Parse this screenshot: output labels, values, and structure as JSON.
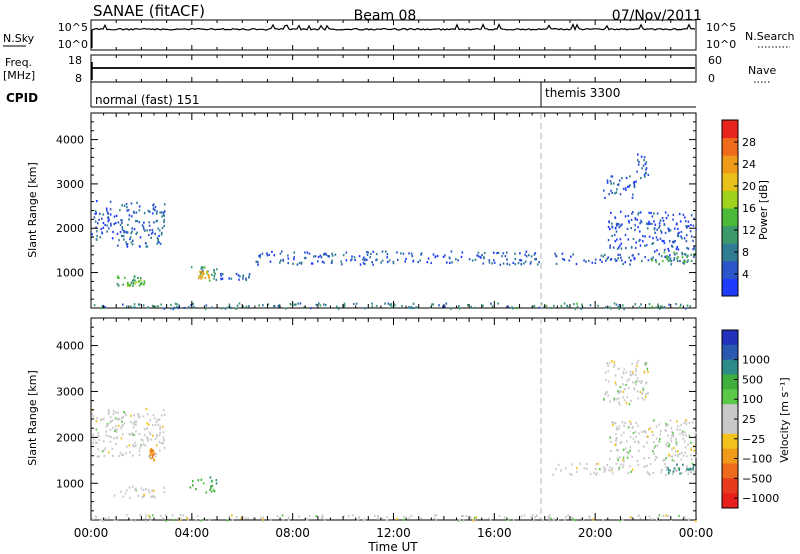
{
  "header": {
    "station": "SANAE (fitACF)",
    "beam": "Beam 08",
    "date": "07/Nov/2011"
  },
  "strips": {
    "nsky_label": "N.Sky",
    "nsky_ticks": [
      "10^5",
      "10^0"
    ],
    "nsearch_label": "N.Search",
    "freq_label_1": "Freq.",
    "freq_label_2": "[MHz]",
    "freq_ticks": [
      "18",
      "8"
    ],
    "nave_label": "Nave",
    "nave_ticks": [
      "60",
      "0"
    ],
    "cpid_label": "CPID",
    "cpid_segments": [
      {
        "name": "normal (fast) 151",
        "start_hour": 0
      },
      {
        "name": "themis 3300",
        "start_hour": 18
      }
    ]
  },
  "chart_data": [
    {
      "type": "scatter",
      "panel": "power",
      "xlabel": "Time UT",
      "ylabel": "Slant Range [km]",
      "xlim": [
        0,
        24
      ],
      "ylim": [
        200,
        4600
      ],
      "x_ticks": [
        "00:00",
        "04:00",
        "08:00",
        "12:00",
        "16:00",
        "20:00",
        "00:00"
      ],
      "y_ticks": [
        1000,
        2000,
        3000,
        4000
      ],
      "colorbar": {
        "label": "Power [dB]",
        "ticks": [
          4,
          8,
          12,
          16,
          20,
          24,
          28
        ],
        "range": [
          0,
          32
        ],
        "colors": [
          "#1f3bff",
          "#2c55c9",
          "#2f7c94",
          "#3c9a6a",
          "#4cb93a",
          "#9fd11d",
          "#e8c21a",
          "#f09a19",
          "#f06a1c",
          "#e8251c"
        ]
      },
      "echo_regions": [
        {
          "t_start": 0.0,
          "t_end": 1.6,
          "r_min": 1750,
          "r_max": 2100,
          "power": 6
        },
        {
          "t_start": 0.1,
          "t_end": 1.0,
          "r_min": 2100,
          "r_max": 2650,
          "power": 5
        },
        {
          "t_start": 1.0,
          "t_end": 2.9,
          "r_min": 1600,
          "r_max": 2600,
          "power": 6
        },
        {
          "t_start": 0.9,
          "t_end": 2.2,
          "r_min": 700,
          "r_max": 950,
          "power": 12
        },
        {
          "t_start": 1.4,
          "t_end": 2.0,
          "r_min": 720,
          "r_max": 860,
          "power": 16
        },
        {
          "t_start": 3.9,
          "t_end": 5.0,
          "r_min": 820,
          "r_max": 1150,
          "power": 10
        },
        {
          "t_start": 4.2,
          "t_end": 4.7,
          "r_min": 880,
          "r_max": 1080,
          "power": 22
        },
        {
          "t_start": 5.1,
          "t_end": 6.3,
          "r_min": 850,
          "r_max": 1000,
          "power": 5
        },
        {
          "t_start": 0.0,
          "t_end": 24.0,
          "r_min": 200,
          "r_max": 330,
          "power": 9
        },
        {
          "t_start": 18.3,
          "t_end": 24.0,
          "r_min": 1200,
          "r_max": 1450,
          "power": 6
        },
        {
          "t_start": 22.2,
          "t_end": 24.0,
          "r_min": 1250,
          "r_max": 1500,
          "power": 12
        },
        {
          "t_start": 20.3,
          "t_end": 21.6,
          "r_min": 2700,
          "r_max": 3200,
          "power": 5
        },
        {
          "t_start": 21.6,
          "t_end": 22.1,
          "r_min": 3150,
          "r_max": 3700,
          "power": 5
        },
        {
          "t_start": 20.5,
          "t_end": 24.0,
          "r_min": 1500,
          "r_max": 2400,
          "power": 4
        },
        {
          "t_start": 6.5,
          "t_end": 17.8,
          "r_min": 1200,
          "r_max": 1500,
          "power": 5
        }
      ]
    },
    {
      "type": "scatter",
      "panel": "velocity",
      "xlabel": "Time UT",
      "ylabel": "Slant Range [km]",
      "xlim": [
        0,
        24
      ],
      "ylim": [
        200,
        4600
      ],
      "x_ticks": [
        "00:00",
        "04:00",
        "08:00",
        "12:00",
        "16:00",
        "20:00",
        "00:00"
      ],
      "y_ticks": [
        1000,
        2000,
        3000,
        4000
      ],
      "colorbar": {
        "label": "Velocity [m s⁻¹]",
        "ticks": [
          "1000",
          "500",
          "100",
          "25",
          "−25",
          "−100",
          "−500",
          "−1000"
        ],
        "colors": [
          "#2233bb",
          "#2a5aaf",
          "#2e8a86",
          "#3fae3e",
          "#5cc84a",
          "#c8c8c8",
          "#c8c8c8",
          "#f3c21c",
          "#f09a19",
          "#ee6a1c",
          "#e83a1c",
          "#e8201c"
        ]
      },
      "echo_regions": [
        {
          "t_start": 0.0,
          "t_end": 2.9,
          "r_min": 1600,
          "r_max": 2650,
          "velocity": 0
        },
        {
          "t_start": 0.9,
          "t_end": 3.0,
          "r_min": 700,
          "r_max": 950,
          "velocity": 0
        },
        {
          "t_start": 3.9,
          "t_end": 5.0,
          "r_min": 820,
          "r_max": 1150,
          "velocity": 80
        },
        {
          "t_start": 2.3,
          "t_end": 2.5,
          "r_min": 1500,
          "r_max": 1800,
          "velocity": -300
        },
        {
          "t_start": 0.0,
          "t_end": 24.0,
          "r_min": 200,
          "r_max": 330,
          "velocity": 0
        },
        {
          "t_start": 18.3,
          "t_end": 24.0,
          "r_min": 1200,
          "r_max": 1450,
          "velocity": 0
        },
        {
          "t_start": 22.8,
          "t_end": 24.0,
          "r_min": 1200,
          "r_max": 1450,
          "velocity": 120
        },
        {
          "t_start": 20.3,
          "t_end": 22.1,
          "r_min": 2700,
          "r_max": 3700,
          "velocity": 0
        },
        {
          "t_start": 20.5,
          "t_end": 24.0,
          "r_min": 1500,
          "r_max": 2400,
          "velocity": 0
        }
      ]
    }
  ]
}
